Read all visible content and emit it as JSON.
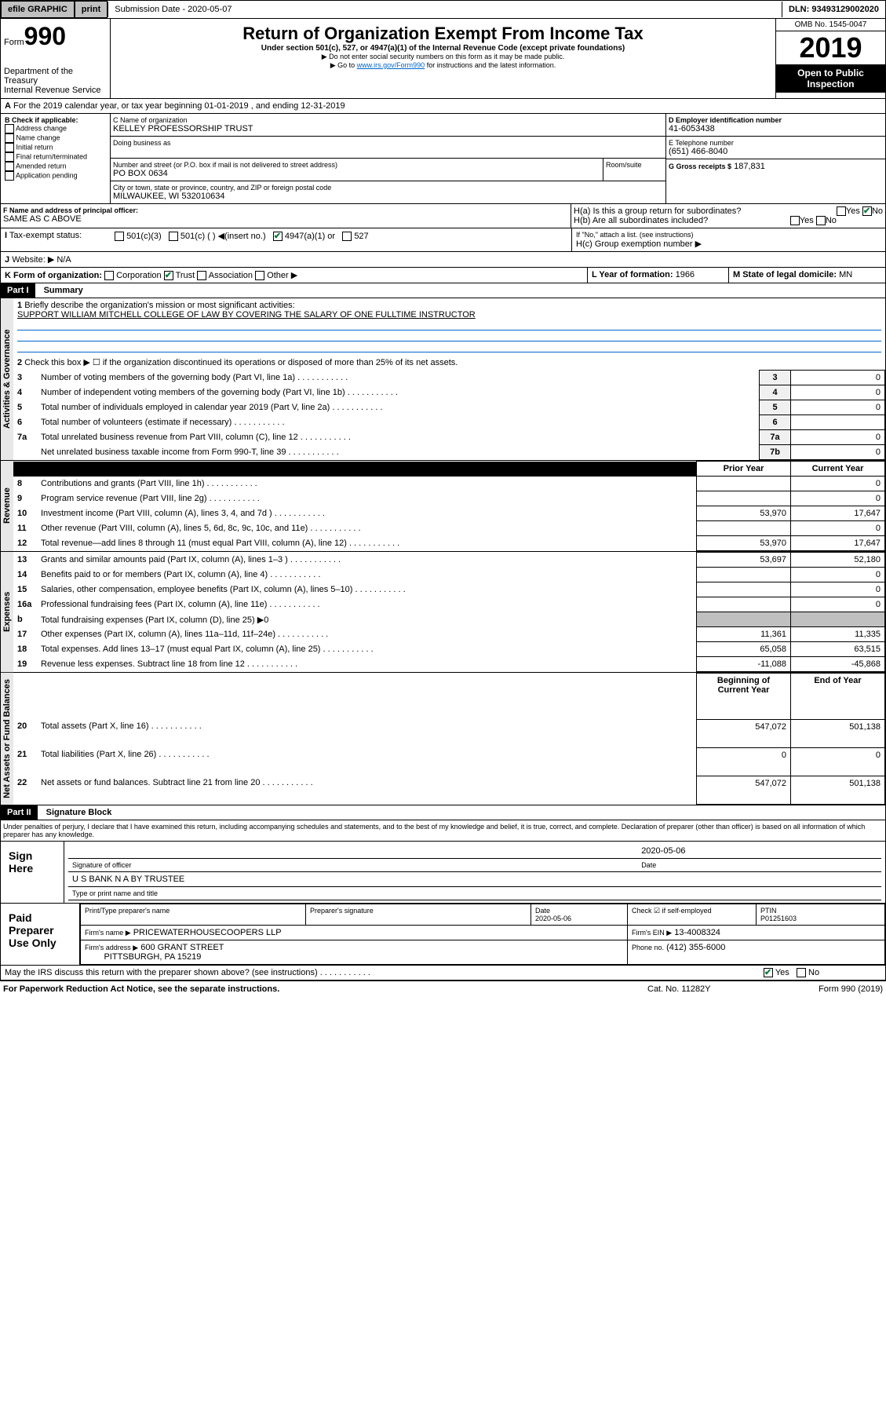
{
  "topbar": {
    "efile": "efile GRAPHIC",
    "print": "print",
    "sub_label": "Submission Date - 2020-05-07",
    "dln": "DLN: 93493129002020"
  },
  "header": {
    "form_prefix": "Form",
    "form_num": "990",
    "dept": "Department of the Treasury",
    "irs": "Internal Revenue Service",
    "title": "Return of Organization Exempt From Income Tax",
    "subtitle": "Under section 501(c), 527, or 4947(a)(1) of the Internal Revenue Code (except private foundations)",
    "note1": "▶ Do not enter social security numbers on this form as it may be made public.",
    "note2_pre": "▶ Go to ",
    "note2_link": "www.irs.gov/Form990",
    "note2_post": " for instructions and the latest information.",
    "omb": "OMB No. 1545-0047",
    "year": "2019",
    "open": "Open to Public Inspection"
  },
  "section_a": {
    "line": "For the 2019 calendar year, or tax year beginning 01-01-2019   , and ending 12-31-2019"
  },
  "box_b": {
    "label": "B Check if applicable:",
    "items": [
      "Address change",
      "Name change",
      "Initial return",
      "Final return/terminated",
      "Amended return",
      "Application pending"
    ]
  },
  "box_c": {
    "name_label": "C Name of organization",
    "name": "KELLEY PROFESSORSHIP TRUST",
    "dba_label": "Doing business as",
    "addr_label": "Number and street (or P.O. box if mail is not delivered to street address)",
    "room_label": "Room/suite",
    "addr": "PO BOX 0634",
    "city_label": "City or town, state or province, country, and ZIP or foreign postal code",
    "city": "MILWAUKEE, WI  532010634"
  },
  "box_d": {
    "label": "D Employer identification number",
    "value": "41-6053438"
  },
  "box_e": {
    "label": "E Telephone number",
    "value": "(651) 466-8040"
  },
  "box_g": {
    "label": "G Gross receipts $",
    "value": "187,831"
  },
  "box_f": {
    "label": "F  Name and address of principal officer:",
    "value": "SAME AS C ABOVE"
  },
  "box_h": {
    "a": "H(a)  Is this a group return for subordinates?",
    "b": "H(b)  Are all subordinates included?",
    "note": "If \"No,\" attach a list. (see instructions)",
    "c": "H(c)  Group exemption number ▶"
  },
  "box_i": {
    "label": "Tax-exempt status:",
    "opts": [
      "501(c)(3)",
      "501(c) (  ) ◀(insert no.)",
      "4947(a)(1) or",
      "527"
    ]
  },
  "box_j": {
    "label": "Website: ▶",
    "value": "N/A"
  },
  "box_k": {
    "label": "K Form of organization:",
    "opts": [
      "Corporation",
      "Trust",
      "Association",
      "Other ▶"
    ]
  },
  "box_l": {
    "label": "L Year of formation:",
    "value": "1966"
  },
  "box_m": {
    "label": "M State of legal domicile:",
    "value": "MN"
  },
  "part1": {
    "hdr": "Part I",
    "title": "Summary",
    "q1": "Briefly describe the organization's mission or most significant activities:",
    "q1_ans": "SUPPORT WILLIAM MITCHELL COLLEGE OF LAW BY COVERING THE SALARY OF ONE FULLTIME INSTRUCTOR",
    "q2": "Check this box ▶ ☐  if the organization discontinued its operations or disposed of more than 25% of its net assets.",
    "rows_gov": [
      {
        "n": "3",
        "t": "Number of voting members of the governing body (Part VI, line 1a)",
        "ln": "3",
        "v": "0"
      },
      {
        "n": "4",
        "t": "Number of independent voting members of the governing body (Part VI, line 1b)",
        "ln": "4",
        "v": "0"
      },
      {
        "n": "5",
        "t": "Total number of individuals employed in calendar year 2019 (Part V, line 2a)",
        "ln": "5",
        "v": "0"
      },
      {
        "n": "6",
        "t": "Total number of volunteers (estimate if necessary)",
        "ln": "6",
        "v": ""
      },
      {
        "n": "7a",
        "t": "Total unrelated business revenue from Part VIII, column (C), line 12",
        "ln": "7a",
        "v": "0"
      },
      {
        "n": "",
        "t": "Net unrelated business taxable income from Form 990-T, line 39",
        "ln": "7b",
        "v": "0"
      }
    ],
    "col_prior": "Prior Year",
    "col_current": "Current Year",
    "rows_rev": [
      {
        "n": "8",
        "t": "Contributions and grants (Part VIII, line 1h)",
        "p": "",
        "c": "0"
      },
      {
        "n": "9",
        "t": "Program service revenue (Part VIII, line 2g)",
        "p": "",
        "c": "0"
      },
      {
        "n": "10",
        "t": "Investment income (Part VIII, column (A), lines 3, 4, and 7d )",
        "p": "53,970",
        "c": "17,647"
      },
      {
        "n": "11",
        "t": "Other revenue (Part VIII, column (A), lines 5, 6d, 8c, 9c, 10c, and 11e)",
        "p": "",
        "c": "0"
      },
      {
        "n": "12",
        "t": "Total revenue—add lines 8 through 11 (must equal Part VIII, column (A), line 12)",
        "p": "53,970",
        "c": "17,647"
      }
    ],
    "rows_exp": [
      {
        "n": "13",
        "t": "Grants and similar amounts paid (Part IX, column (A), lines 1–3 )",
        "p": "53,697",
        "c": "52,180"
      },
      {
        "n": "14",
        "t": "Benefits paid to or for members (Part IX, column (A), line 4)",
        "p": "",
        "c": "0"
      },
      {
        "n": "15",
        "t": "Salaries, other compensation, employee benefits (Part IX, column (A), lines 5–10)",
        "p": "",
        "c": "0"
      },
      {
        "n": "16a",
        "t": "Professional fundraising fees (Part IX, column (A), line 11e)",
        "p": "",
        "c": "0"
      },
      {
        "n": "b",
        "t": "Total fundraising expenses (Part IX, column (D), line 25) ▶0",
        "p": "—",
        "c": "—"
      },
      {
        "n": "17",
        "t": "Other expenses (Part IX, column (A), lines 11a–11d, 11f–24e)",
        "p": "11,361",
        "c": "11,335"
      },
      {
        "n": "18",
        "t": "Total expenses. Add lines 13–17 (must equal Part IX, column (A), line 25)",
        "p": "65,058",
        "c": "63,515"
      },
      {
        "n": "19",
        "t": "Revenue less expenses. Subtract line 18 from line 12",
        "p": "-11,088",
        "c": "-45,868"
      }
    ],
    "col_begin": "Beginning of Current Year",
    "col_end": "End of Year",
    "rows_net": [
      {
        "n": "20",
        "t": "Total assets (Part X, line 16)",
        "p": "547,072",
        "c": "501,138"
      },
      {
        "n": "21",
        "t": "Total liabilities (Part X, line 26)",
        "p": "0",
        "c": "0"
      },
      {
        "n": "22",
        "t": "Net assets or fund balances. Subtract line 21 from line 20",
        "p": "547,072",
        "c": "501,138"
      }
    ],
    "sidebar_gov": "Activities & Governance",
    "sidebar_rev": "Revenue",
    "sidebar_exp": "Expenses",
    "sidebar_net": "Net Assets or Fund Balances"
  },
  "part2": {
    "hdr": "Part II",
    "title": "Signature Block",
    "perjury": "Under penalties of perjury, I declare that I have examined this return, including accompanying schedules and statements, and to the best of my knowledge and belief, it is true, correct, and complete. Declaration of preparer (other than officer) is based on all information of which preparer has any knowledge.",
    "sign_here": "Sign Here",
    "sig_officer": "Signature of officer",
    "sig_date_label": "Date",
    "sig_date": "2020-05-06",
    "trustee": "U S BANK N A BY TRUSTEE",
    "type_name": "Type or print name and title",
    "paid": "Paid Preparer Use Only",
    "prep_name_label": "Print/Type preparer's name",
    "prep_sig_label": "Preparer's signature",
    "prep_date_label": "Date",
    "prep_date": "2020-05-06",
    "check_self": "Check ☑ if self-employed",
    "ptin_label": "PTIN",
    "ptin": "P01251603",
    "firm_name_label": "Firm's name   ▶",
    "firm_name": "PRICEWATERHOUSECOOPERS LLP",
    "firm_ein_label": "Firm's EIN ▶",
    "firm_ein": "13-4008324",
    "firm_addr_label": "Firm's address ▶",
    "firm_addr": "600 GRANT STREET",
    "firm_city": "PITTSBURGH, PA  15219",
    "phone_label": "Phone no.",
    "phone": "(412) 355-6000"
  },
  "footer": {
    "discuss": "May the IRS discuss this return with the preparer shown above? (see instructions)",
    "paperwork": "For Paperwork Reduction Act Notice, see the separate instructions.",
    "cat": "Cat. No. 11282Y",
    "form": "Form 990 (2019)"
  },
  "yesno": {
    "yes": "Yes",
    "no": "No"
  }
}
